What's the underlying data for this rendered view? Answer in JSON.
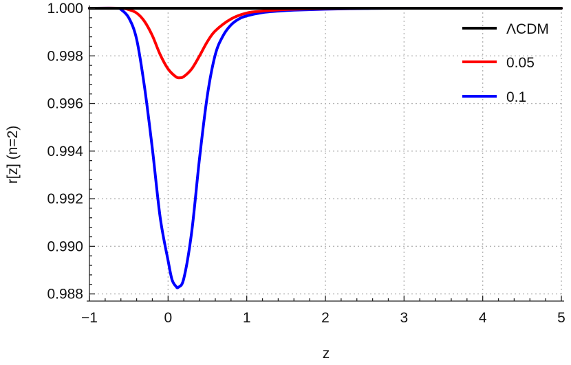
{
  "chart_data": {
    "type": "line",
    "title": "",
    "xlabel": "z",
    "ylabel": "r[z] (n=2)",
    "xlim": [
      -1,
      5
    ],
    "ylim": [
      0.9877,
      1.0
    ],
    "grid": true,
    "legend_position": "top-right",
    "x_ticks": [
      -1,
      0,
      1,
      2,
      3,
      4,
      5
    ],
    "x_tick_labels": [
      "−1",
      "0",
      "1",
      "2",
      "3",
      "4",
      "5"
    ],
    "y_ticks": [
      0.988,
      0.99,
      0.992,
      0.994,
      0.996,
      0.998,
      1.0
    ],
    "y_tick_labels": [
      "0.988",
      "0.990",
      "0.992",
      "0.994",
      "0.996",
      "0.998",
      "1.000"
    ],
    "series": [
      {
        "name": "ΛCDM",
        "color": "#000000",
        "x": [
          -1,
          5
        ],
        "y": [
          1.0,
          1.0
        ]
      },
      {
        "name": "0.05",
        "color": "#ff0000",
        "x": [
          -1.0,
          -0.6,
          -0.5,
          -0.4,
          -0.3,
          -0.2,
          -0.1,
          0.0,
          0.1,
          0.15,
          0.2,
          0.3,
          0.4,
          0.5,
          0.6,
          0.8,
          1.0,
          1.2,
          1.5,
          1.8,
          2.0,
          2.5,
          3.0,
          5.0
        ],
        "y": [
          1.0,
          1.0,
          0.99994,
          0.9998,
          0.99945,
          0.99885,
          0.99805,
          0.99745,
          0.99712,
          0.99708,
          0.99713,
          0.99745,
          0.998,
          0.9986,
          0.99905,
          0.99955,
          0.9998,
          0.99988,
          0.99995,
          0.99998,
          0.99999,
          1.0,
          1.0,
          1.0
        ]
      },
      {
        "name": "0.1",
        "color": "#0000ff",
        "x": [
          -1.0,
          -0.65,
          -0.6,
          -0.5,
          -0.4,
          -0.3,
          -0.2,
          -0.1,
          0.0,
          0.05,
          0.1,
          0.13,
          0.2,
          0.3,
          0.4,
          0.5,
          0.6,
          0.7,
          0.8,
          0.9,
          1.0,
          1.2,
          1.4,
          1.6,
          2.0,
          2.5,
          3.0,
          5.0
        ],
        "y": [
          1.0,
          1.0,
          0.99995,
          0.9996,
          0.9987,
          0.9967,
          0.9941,
          0.9912,
          0.9894,
          0.9886,
          0.98832,
          0.98828,
          0.98865,
          0.9906,
          0.9937,
          0.99635,
          0.99805,
          0.99885,
          0.9993,
          0.99955,
          0.99968,
          0.99982,
          0.99988,
          0.99992,
          0.99996,
          0.99999,
          1.0,
          1.0
        ]
      }
    ]
  }
}
